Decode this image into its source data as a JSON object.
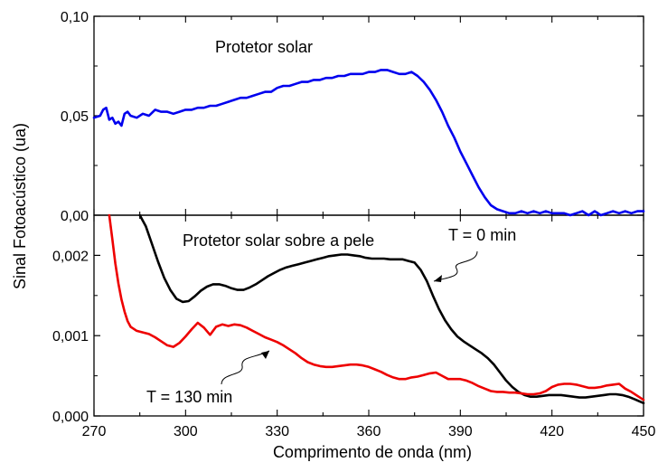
{
  "chart_data": [
    {
      "type": "line",
      "panel": "top",
      "annotation": "Protetor solar",
      "xlim": [
        270,
        450
      ],
      "ylim": [
        0,
        0.1
      ],
      "y_ticks": [
        "0,00",
        "0,05",
        "0,10"
      ],
      "series": [
        {
          "color": "#0000ee",
          "x": [
            270,
            272,
            273,
            274,
            275,
            276,
            277,
            278,
            279,
            280,
            281,
            282,
            284,
            286,
            288,
            290,
            292,
            294,
            296,
            298,
            300,
            302,
            304,
            306,
            308,
            310,
            312,
            314,
            316,
            318,
            320,
            322,
            324,
            326,
            328,
            330,
            332,
            334,
            336,
            338,
            340,
            342,
            344,
            346,
            348,
            350,
            352,
            354,
            356,
            358,
            360,
            362,
            364,
            366,
            368,
            370,
            372,
            374,
            376,
            378,
            380,
            382,
            384,
            386,
            388,
            390,
            392,
            394,
            396,
            398,
            400,
            402,
            404,
            406,
            408,
            410,
            412,
            414,
            416,
            418,
            420,
            422,
            424,
            426,
            428,
            430,
            432,
            434,
            436,
            438,
            440,
            442,
            444,
            446,
            448,
            450
          ],
          "y": [
            0.049,
            0.05,
            0.053,
            0.054,
            0.048,
            0.049,
            0.046,
            0.047,
            0.045,
            0.051,
            0.052,
            0.05,
            0.049,
            0.051,
            0.05,
            0.053,
            0.052,
            0.052,
            0.051,
            0.052,
            0.053,
            0.053,
            0.054,
            0.054,
            0.055,
            0.055,
            0.056,
            0.057,
            0.058,
            0.059,
            0.059,
            0.06,
            0.061,
            0.062,
            0.062,
            0.064,
            0.065,
            0.065,
            0.066,
            0.067,
            0.067,
            0.068,
            0.068,
            0.069,
            0.069,
            0.07,
            0.07,
            0.071,
            0.071,
            0.071,
            0.072,
            0.072,
            0.073,
            0.073,
            0.072,
            0.071,
            0.071,
            0.072,
            0.07,
            0.067,
            0.063,
            0.058,
            0.052,
            0.045,
            0.039,
            0.032,
            0.026,
            0.02,
            0.014,
            0.009,
            0.005,
            0.003,
            0.002,
            0.001,
            0.001,
            0.002,
            0.001,
            0.002,
            0.001,
            0.002,
            0.001,
            0.001,
            0.001,
            0.0,
            0.001,
            0.002,
            0.0,
            0.002,
            0.0,
            0.001,
            0.002,
            0.001,
            0.002,
            0.001,
            0.002,
            0.002
          ]
        }
      ]
    },
    {
      "type": "line",
      "panel": "bottom",
      "annotation": "Protetor solar sobre a pele",
      "xlim": [
        270,
        450
      ],
      "ylim": [
        0,
        0.0025
      ],
      "xlabel": "Comprimento de onda (nm)",
      "x_ticks": [
        "270",
        "300",
        "330",
        "360",
        "390",
        "420",
        "450"
      ],
      "y_ticks": [
        "0,000",
        "0,001",
        "0,002"
      ],
      "series": [
        {
          "name": "T = 0 min",
          "color": "#000000",
          "x": [
            285,
            287,
            289,
            291,
            293,
            295,
            297,
            299,
            301,
            303,
            305,
            307,
            309,
            311,
            313,
            315,
            317,
            319,
            321,
            323,
            325,
            327,
            329,
            331,
            333,
            335,
            337,
            339,
            341,
            343,
            345,
            347,
            349,
            351,
            353,
            355,
            357,
            359,
            361,
            363,
            365,
            367,
            369,
            371,
            373,
            375,
            377,
            379,
            381,
            383,
            385,
            387,
            389,
            391,
            393,
            395,
            397,
            399,
            401,
            403,
            405,
            407,
            409,
            411,
            413,
            415,
            417,
            419,
            421,
            423,
            425,
            427,
            429,
            431,
            433,
            435,
            437,
            439,
            441,
            443,
            445,
            447,
            450
          ],
          "y": [
            0.0025,
            0.00236,
            0.00214,
            0.00192,
            0.00172,
            0.00157,
            0.00146,
            0.00142,
            0.00143,
            0.00149,
            0.00156,
            0.00161,
            0.00164,
            0.00164,
            0.00162,
            0.00159,
            0.00157,
            0.00157,
            0.0016,
            0.00164,
            0.00169,
            0.00174,
            0.00178,
            0.00182,
            0.00185,
            0.00187,
            0.00189,
            0.00191,
            0.00193,
            0.00195,
            0.00197,
            0.00199,
            0.002,
            0.00201,
            0.00201,
            0.002,
            0.00199,
            0.00197,
            0.00196,
            0.00196,
            0.00196,
            0.00195,
            0.00195,
            0.00195,
            0.00193,
            0.00191,
            0.00182,
            0.00168,
            0.0015,
            0.00133,
            0.00119,
            0.00108,
            0.00099,
            0.00093,
            0.00088,
            0.00083,
            0.00078,
            0.00072,
            0.00064,
            0.00054,
            0.00044,
            0.00036,
            0.0003,
            0.00026,
            0.00024,
            0.00024,
            0.00025,
            0.00026,
            0.00026,
            0.00026,
            0.00025,
            0.00024,
            0.00023,
            0.00023,
            0.00024,
            0.00025,
            0.00026,
            0.00027,
            0.00027,
            0.00026,
            0.00024,
            0.00021,
            0.00016
          ]
        },
        {
          "name": "T = 130 min",
          "color": "#ee0000",
          "x": [
            275,
            276,
            277,
            278,
            279,
            280,
            281,
            282,
            284,
            286,
            288,
            290,
            292,
            294,
            296,
            298,
            300,
            302,
            304,
            306,
            308,
            310,
            312,
            314,
            316,
            318,
            320,
            322,
            324,
            326,
            328,
            330,
            332,
            334,
            336,
            338,
            340,
            342,
            344,
            346,
            348,
            350,
            352,
            354,
            356,
            358,
            360,
            362,
            364,
            366,
            368,
            370,
            372,
            374,
            376,
            378,
            380,
            382,
            384,
            386,
            388,
            390,
            392,
            394,
            396,
            398,
            400,
            402,
            404,
            406,
            408,
            410,
            412,
            414,
            416,
            418,
            420,
            422,
            424,
            426,
            428,
            430,
            432,
            434,
            436,
            438,
            440,
            442,
            444,
            446,
            448,
            450
          ],
          "y": [
            0.0025,
            0.0022,
            0.0019,
            0.00165,
            0.00145,
            0.0013,
            0.00118,
            0.00111,
            0.00106,
            0.00104,
            0.00102,
            0.00098,
            0.00093,
            0.00088,
            0.00086,
            0.00091,
            0.00099,
            0.00108,
            0.00116,
            0.0011,
            0.00101,
            0.00111,
            0.00114,
            0.00112,
            0.00114,
            0.00113,
            0.0011,
            0.00106,
            0.00102,
            0.00098,
            0.00095,
            0.00092,
            0.00088,
            0.00083,
            0.00078,
            0.00072,
            0.00067,
            0.00064,
            0.00062,
            0.00061,
            0.00061,
            0.00062,
            0.00063,
            0.00064,
            0.00064,
            0.00063,
            0.00061,
            0.00058,
            0.00055,
            0.00051,
            0.00048,
            0.00046,
            0.00046,
            0.00048,
            0.00049,
            0.00051,
            0.00053,
            0.00054,
            0.0005,
            0.00046,
            0.00046,
            0.00046,
            0.00044,
            0.00041,
            0.00037,
            0.00034,
            0.00031,
            0.0003,
            0.0003,
            0.00029,
            0.00029,
            0.00028,
            0.00027,
            0.00027,
            0.00028,
            0.00031,
            0.00036,
            0.00039,
            0.0004,
            0.0004,
            0.00039,
            0.00037,
            0.00035,
            0.00035,
            0.00036,
            0.00038,
            0.00039,
            0.0004,
            0.00034,
            0.0003,
            0.00025,
            0.0002
          ]
        }
      ]
    }
  ],
  "ylabel": "Sinal Fotoacústico (ua)"
}
